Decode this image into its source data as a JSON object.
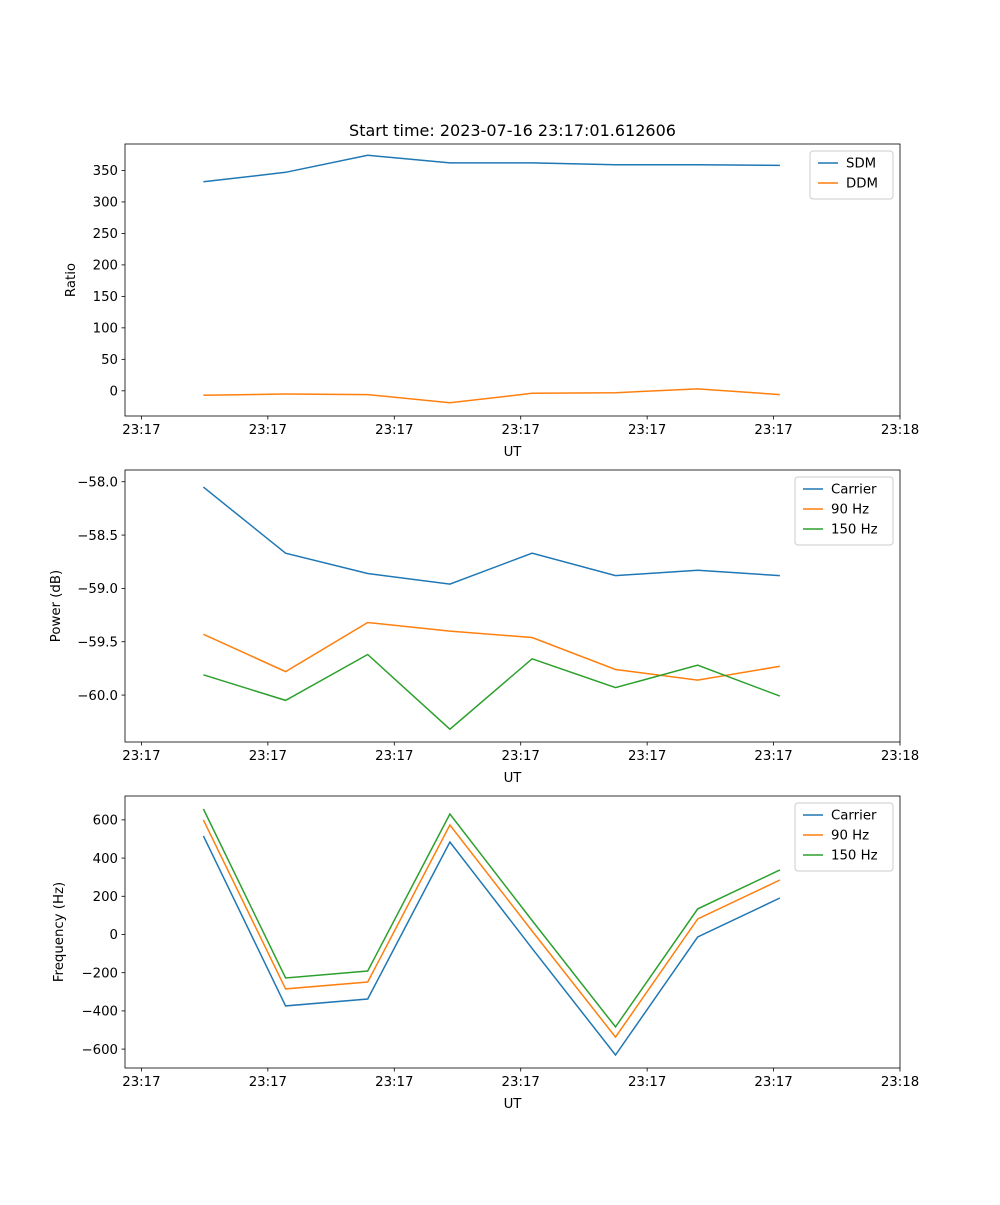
{
  "chart_data": [
    {
      "type": "line",
      "title": "Start time: 2023-07-16 23:17:01.612606",
      "xlabel": "UT",
      "ylabel": "Ratio",
      "x_units": "seconds after 23:17:00",
      "x": [
        4.9,
        11.4,
        17.9,
        24.4,
        30.9,
        37.5,
        44.0,
        50.5
      ],
      "xlim": [
        -1.3,
        60.0
      ],
      "xticks": [
        0,
        10,
        20,
        30,
        40,
        50,
        60
      ],
      "xtick_labels": [
        "23:17",
        "23:17",
        "23:17",
        "23:17",
        "23:17",
        "23:17",
        "23:18"
      ],
      "ylim": [
        -40,
        392
      ],
      "yticks": [
        0,
        50,
        100,
        150,
        200,
        250,
        300,
        350
      ],
      "ytick_labels": [
        "0",
        "50",
        "100",
        "150",
        "200",
        "250",
        "300",
        "350"
      ],
      "legend_position": "upper-right",
      "series": [
        {
          "name": "SDM",
          "color": "#1f77b4",
          "values": [
            332,
            347,
            374,
            362,
            362,
            359,
            359,
            358
          ]
        },
        {
          "name": "DDM",
          "color": "#ff7f0e",
          "values": [
            -7,
            -5,
            -6,
            -19,
            -4,
            -3,
            3,
            -6
          ]
        }
      ]
    },
    {
      "type": "line",
      "xlabel": "UT",
      "ylabel": "Power (dB)",
      "x_units": "seconds after 23:17:00",
      "x": [
        4.9,
        11.4,
        17.9,
        24.4,
        30.9,
        37.5,
        44.0,
        50.5
      ],
      "xlim": [
        -1.3,
        60.0
      ],
      "xticks": [
        0,
        10,
        20,
        30,
        40,
        50,
        60
      ],
      "xtick_labels": [
        "23:17",
        "23:17",
        "23:17",
        "23:17",
        "23:17",
        "23:17",
        "23:18"
      ],
      "ylim": [
        -60.44,
        -57.89
      ],
      "yticks": [
        -60.0,
        -59.5,
        -59.0,
        -58.5,
        -58.0
      ],
      "ytick_labels": [
        "−60.0",
        "−59.5",
        "−59.0",
        "−58.5",
        "−58.0"
      ],
      "legend_position": "upper-right",
      "series": [
        {
          "name": "Carrier",
          "color": "#1f77b4",
          "values": [
            -58.05,
            -58.67,
            -58.86,
            -58.96,
            -58.67,
            -58.88,
            -58.83,
            -58.88
          ]
        },
        {
          "name": "90 Hz",
          "color": "#ff7f0e",
          "values": [
            -59.43,
            -59.78,
            -59.32,
            -59.4,
            -59.46,
            -59.76,
            -59.86,
            -59.73
          ]
        },
        {
          "name": "150 Hz",
          "color": "#2ca02c",
          "values": [
            -59.81,
            -60.05,
            -59.62,
            -60.32,
            -59.66,
            -59.93,
            -59.72,
            -60.01
          ]
        }
      ]
    },
    {
      "type": "line",
      "xlabel": "UT",
      "ylabel": "Frequency (Hz)",
      "x_units": "seconds after 23:17:00",
      "x": [
        4.9,
        11.4,
        17.9,
        24.4,
        30.9,
        37.5,
        44.0,
        50.5
      ],
      "xlim": [
        -1.3,
        60.0
      ],
      "xticks": [
        0,
        10,
        20,
        30,
        40,
        50,
        60
      ],
      "xtick_labels": [
        "23:17",
        "23:17",
        "23:17",
        "23:17",
        "23:17",
        "23:17",
        "23:18"
      ],
      "ylim": [
        -699,
        725
      ],
      "yticks": [
        -600,
        -400,
        -200,
        0,
        200,
        400,
        600
      ],
      "ytick_labels": [
        "−600",
        "−400",
        "−200",
        "0",
        "200",
        "400",
        "600"
      ],
      "legend_position": "upper-right",
      "series": [
        {
          "name": "Carrier",
          "color": "#1f77b4",
          "values": [
            516,
            -374,
            -338,
            484,
            -73,
            -631,
            -13,
            191
          ]
        },
        {
          "name": "90 Hz",
          "color": "#ff7f0e",
          "values": [
            600,
            -285,
            -249,
            573,
            18,
            -537,
            81,
            285
          ]
        },
        {
          "name": "150 Hz",
          "color": "#2ca02c",
          "values": [
            657,
            -228,
            -191,
            631,
            73,
            -484,
            134,
            338
          ]
        }
      ]
    }
  ]
}
